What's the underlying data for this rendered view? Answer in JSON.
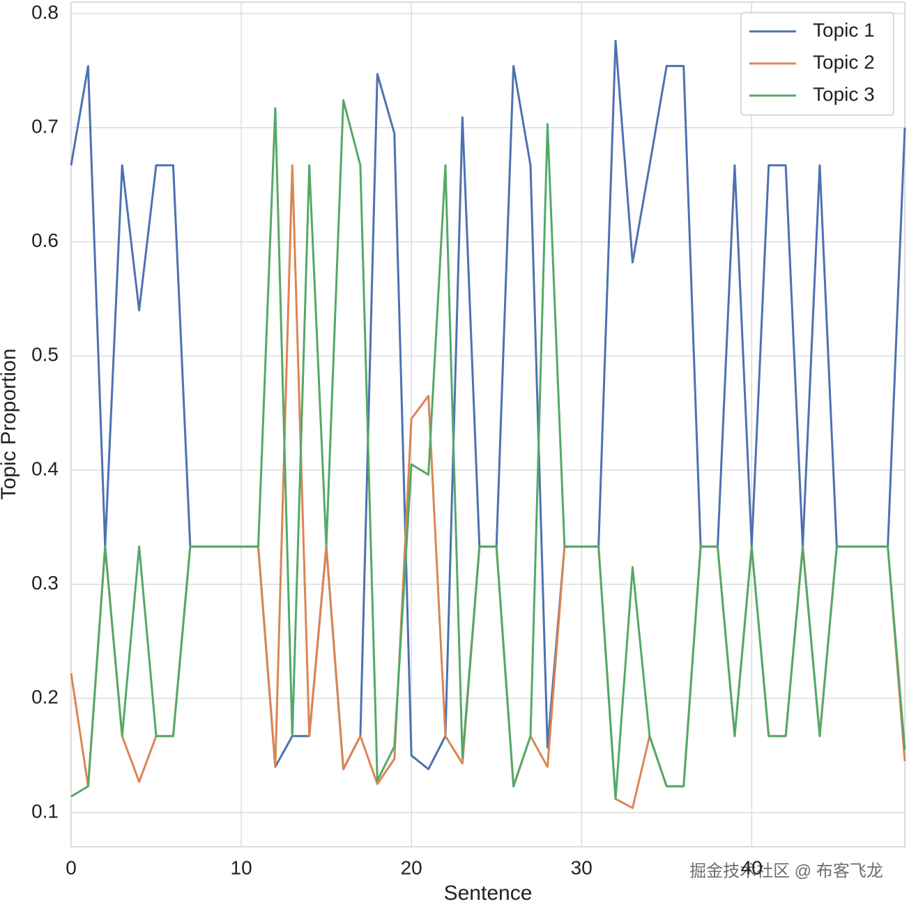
{
  "chart_data": {
    "type": "line",
    "x_label": "Sentence",
    "y_label": "Topic Proportion",
    "x": [
      0,
      1,
      2,
      3,
      4,
      5,
      6,
      7,
      8,
      9,
      10,
      11,
      12,
      13,
      14,
      15,
      16,
      17,
      18,
      19,
      20,
      21,
      22,
      23,
      24,
      25,
      26,
      27,
      28,
      29,
      30,
      31,
      32,
      33,
      34,
      35,
      36,
      37,
      38,
      39,
      40,
      41,
      42,
      43,
      44,
      45,
      46,
      47,
      48,
      49
    ],
    "series": [
      {
        "name": "Topic 1",
        "color": "#4c72b0",
        "values": [
          0.667,
          0.754,
          0.333,
          0.667,
          0.54,
          0.667,
          0.667,
          0.333,
          0.333,
          0.333,
          0.333,
          0.333,
          0.14,
          0.167,
          0.167,
          0.333,
          0.138,
          0.167,
          0.747,
          0.695,
          0.15,
          0.138,
          0.167,
          0.709,
          0.333,
          0.333,
          0.754,
          0.667,
          0.157,
          0.333,
          0.333,
          0.333,
          0.776,
          0.582,
          0.667,
          0.754,
          0.754,
          0.333,
          0.333,
          0.667,
          0.333,
          0.667,
          0.667,
          0.333,
          0.667,
          0.333,
          0.333,
          0.333,
          0.333,
          0.7
        ]
      },
      {
        "name": "Topic 2",
        "color": "#dd8452",
        "values": [
          0.222,
          0.123,
          0.333,
          0.167,
          0.127,
          0.167,
          0.167,
          0.333,
          0.333,
          0.333,
          0.333,
          0.333,
          0.14,
          0.667,
          0.167,
          0.333,
          0.138,
          0.167,
          0.125,
          0.147,
          0.445,
          0.465,
          0.167,
          0.143,
          0.333,
          0.333,
          0.123,
          0.167,
          0.14,
          0.333,
          0.333,
          0.333,
          0.112,
          0.104,
          0.167,
          0.123,
          0.123,
          0.333,
          0.333,
          0.167,
          0.333,
          0.167,
          0.167,
          0.333,
          0.167,
          0.333,
          0.333,
          0.333,
          0.333,
          0.145
        ]
      },
      {
        "name": "Topic 3",
        "color": "#55a868",
        "values": [
          0.114,
          0.123,
          0.333,
          0.167,
          0.333,
          0.167,
          0.167,
          0.333,
          0.333,
          0.333,
          0.333,
          0.333,
          0.717,
          0.167,
          0.667,
          0.333,
          0.724,
          0.667,
          0.128,
          0.158,
          0.405,
          0.396,
          0.667,
          0.148,
          0.333,
          0.333,
          0.123,
          0.167,
          0.703,
          0.333,
          0.333,
          0.333,
          0.112,
          0.315,
          0.167,
          0.123,
          0.123,
          0.333,
          0.333,
          0.167,
          0.333,
          0.167,
          0.167,
          0.333,
          0.167,
          0.333,
          0.333,
          0.333,
          0.333,
          0.155
        ]
      }
    ],
    "xlim": [
      0,
      49
    ],
    "xticks": [
      0,
      10,
      20,
      30,
      40
    ],
    "ylim": [
      0.07,
      0.81
    ],
    "yticks": [
      0.1,
      0.2,
      0.3,
      0.4,
      0.5,
      0.6,
      0.7,
      0.8
    ],
    "grid": true,
    "legend": "upper right",
    "watermark": "掘金技术社区 @ 布客飞龙"
  }
}
